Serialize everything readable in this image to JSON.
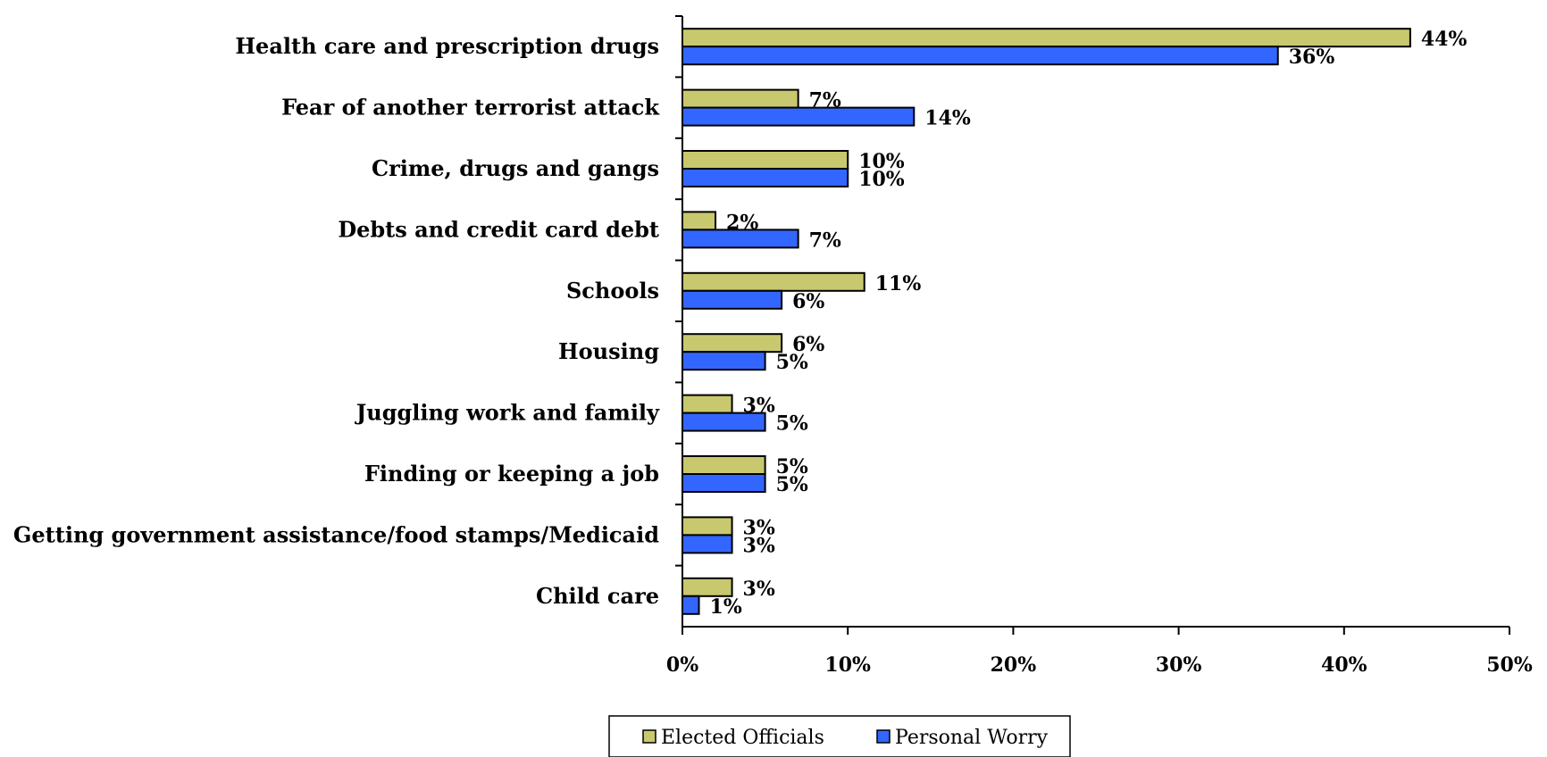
{
  "chart_data": {
    "type": "bar",
    "orientation": "horizontal",
    "categories": [
      "Health care and prescription drugs",
      "Fear of another terrorist attack",
      "Crime, drugs and gangs",
      "Debts and credit card debt",
      "Schools",
      "Housing",
      "Juggling work and family",
      "Finding or keeping a job",
      "Getting government assistance/food stamps/Medicaid",
      "Child care"
    ],
    "series": [
      {
        "name": "Elected Officials",
        "color": "#c8c86e",
        "values": [
          44,
          7,
          10,
          2,
          11,
          6,
          3,
          5,
          3,
          3
        ],
        "labels": [
          "44%",
          "7%",
          "10%",
          "2%",
          "11%",
          "6%",
          "3%",
          "5%",
          "3%",
          "3%"
        ]
      },
      {
        "name": "Personal Worry",
        "color": "#3366ff",
        "values": [
          36,
          14,
          10,
          7,
          6,
          5,
          5,
          5,
          3,
          1
        ],
        "labels": [
          "36%",
          "14%",
          "10%",
          "7%",
          "6%",
          "5%",
          "5%",
          "5%",
          "3%",
          "1%"
        ]
      }
    ],
    "xlim": [
      0,
      50
    ],
    "x_ticks": [
      "0%",
      "10%",
      "20%",
      "30%",
      "40%",
      "50%"
    ],
    "grid": false,
    "legend_position": "bottom"
  }
}
